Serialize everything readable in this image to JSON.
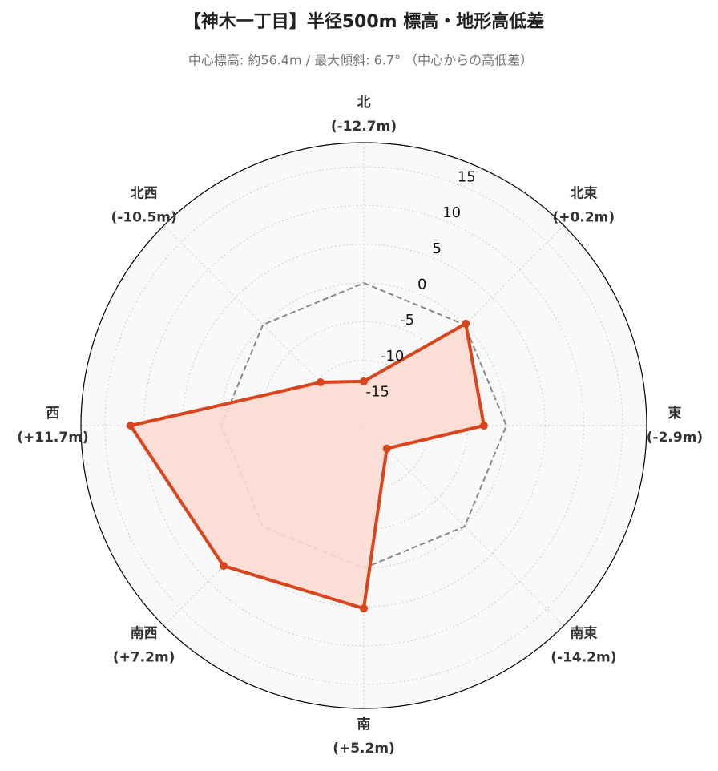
{
  "chart_data": {
    "type": "radar",
    "title": "【神木一丁目】半径500m 標高・地形高低差",
    "subtitle": "中心標高: 約56.4m / 最大傾斜: 6.7° （中心からの高低差）",
    "categories": [
      "北",
      "北東",
      "東",
      "南東",
      "南",
      "南西",
      "西",
      "北西"
    ],
    "series": [
      {
        "name": "高低差",
        "color": "#d9441c",
        "fill": "#fbdcd3",
        "values": [
          -12.7,
          0.2,
          -2.9,
          -14.2,
          5.2,
          7.2,
          11.7,
          -10.5
        ],
        "value_labels": [
          "(-12.7m)",
          "(+0.2m)",
          "(-2.9m)",
          "(-14.2m)",
          "(+5.2m)",
          "(+7.2m)",
          "(+11.7m)",
          "(-10.5m)"
        ]
      }
    ],
    "reference": 0,
    "rlim": [
      -18.4,
      18.1
    ],
    "rticks": [
      -15,
      -10,
      -5,
      0,
      5,
      10,
      15
    ],
    "grid": true
  }
}
